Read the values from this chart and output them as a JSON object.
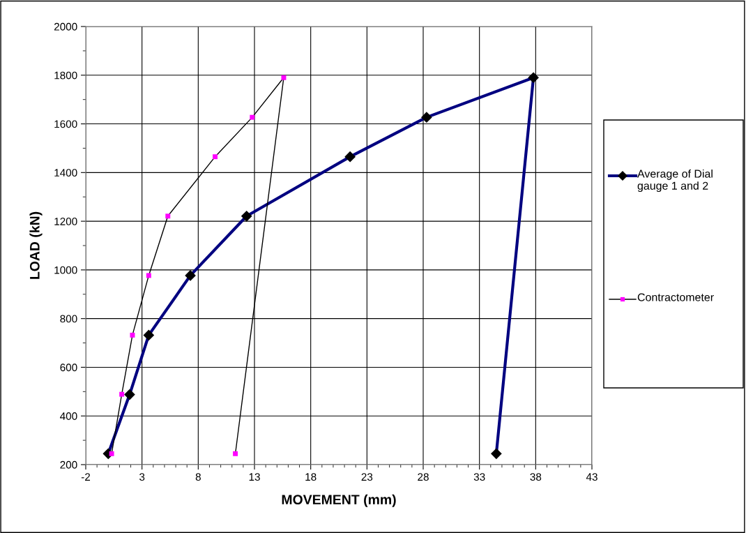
{
  "chart_data": {
    "type": "line",
    "xlabel": "MOVEMENT (mm)",
    "ylabel": "LOAD (kN)",
    "xlim": [
      -2,
      43
    ],
    "xticks": [
      -2,
      3,
      8,
      13,
      18,
      23,
      28,
      33,
      38,
      43
    ],
    "ylim": [
      200,
      2000
    ],
    "yticks": [
      200,
      400,
      600,
      800,
      1000,
      1200,
      1400,
      1600,
      1800,
      2000
    ],
    "grid": true,
    "legend": "right",
    "series": [
      {
        "name": "Average of Dial gauge 1 and 2",
        "color": "#000080",
        "marker": "diamond",
        "colors": [
          "#000000",
          "#000000",
          "#000000",
          "#000000",
          "#000000",
          "#000000",
          "#000000",
          "#000000",
          "#000000"
        ],
        "x": [
          0,
          1.9,
          3.6,
          7.3,
          12.3,
          21.5,
          28.3,
          37.8,
          34.5
        ],
        "values": [
          245,
          488,
          732,
          977,
          1221,
          1465,
          1627,
          1790,
          245
        ]
      },
      {
        "name": "Contractometer",
        "color": "#000000",
        "marker": "square",
        "colors": [
          "#ff00ff",
          "#ff00ff",
          "#ff00ff",
          "#ff00ff",
          "#ff00ff",
          "#ff00ff",
          "#ff00ff",
          "#ff00ff",
          "#ff00ff"
        ],
        "x": [
          0.3,
          1.2,
          2.15,
          3.6,
          5.3,
          9.5,
          12.8,
          15.6,
          11.3
        ],
        "values": [
          245,
          489,
          732,
          977,
          1221,
          1465,
          1627,
          1790,
          245
        ]
      }
    ]
  }
}
